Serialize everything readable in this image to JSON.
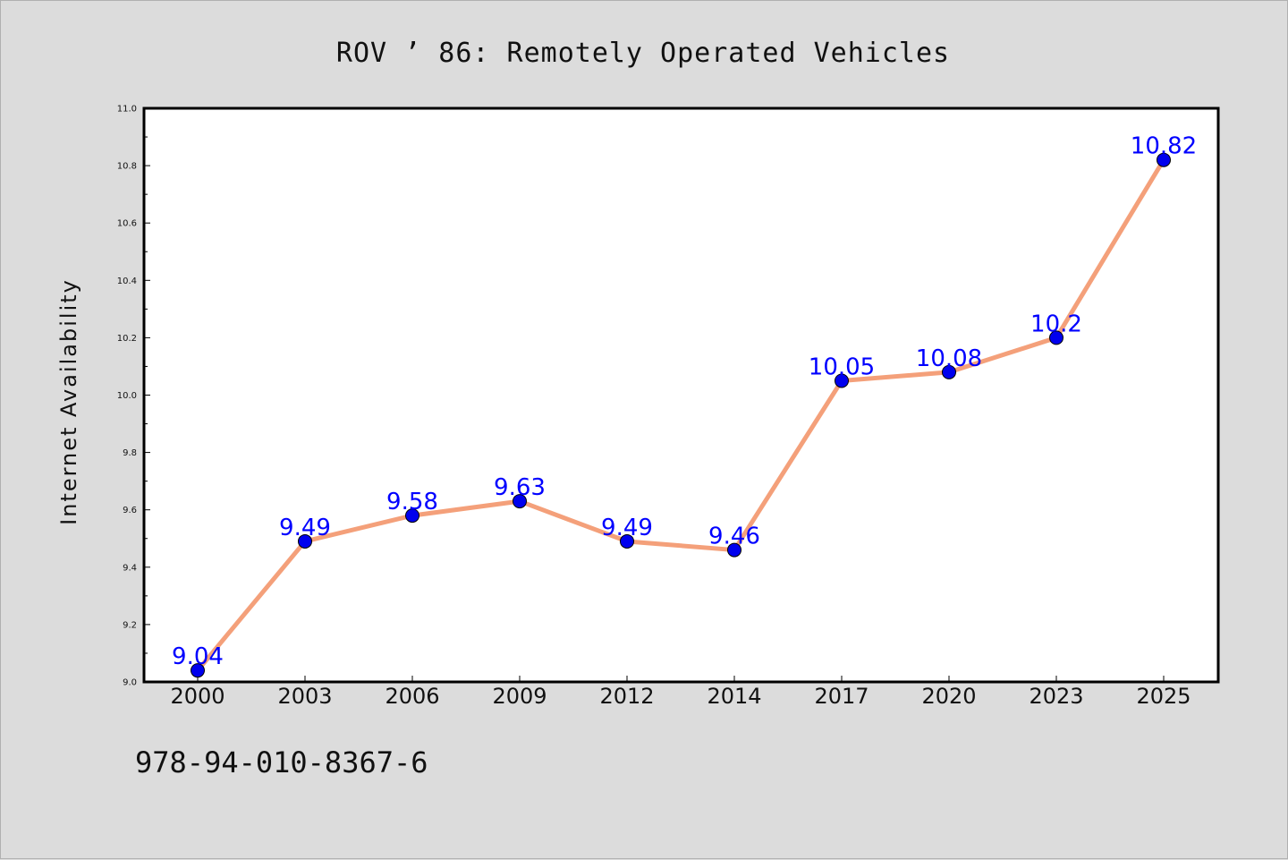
{
  "chart_data": {
    "type": "line",
    "title": "ROV ’ 86: Remotely Operated Vehicles",
    "xlabel": "",
    "ylabel": "Internet Availability",
    "categories": [
      "2000",
      "2003",
      "2006",
      "2009",
      "2012",
      "2014",
      "2017",
      "2020",
      "2023",
      "2025"
    ],
    "series": [
      {
        "values": [
          9.04,
          9.49,
          9.58,
          9.63,
          9.49,
          9.46,
          10.05,
          10.08,
          10.2,
          10.82
        ]
      }
    ],
    "data_labels": [
      "9.04",
      "9.49",
      "9.58",
      "9.63",
      "9.49",
      "9.46",
      "10.05",
      "10.08",
      "10.2",
      "10.82"
    ],
    "ylim": [
      9.0,
      11.0
    ],
    "yticks": [
      "9.0",
      "9.2",
      "9.4",
      "9.6",
      "9.8",
      "10.0",
      "10.2",
      "10.4",
      "10.6",
      "10.8",
      "11.0"
    ],
    "grid": false,
    "colors": {
      "line": "#f4a07a",
      "marker": "#0000ee",
      "label": "#0000ff",
      "background": "#dcdcdc",
      "plot_area": "#ffffff"
    }
  },
  "footer": {
    "code": "978-94-010-8367-6"
  }
}
